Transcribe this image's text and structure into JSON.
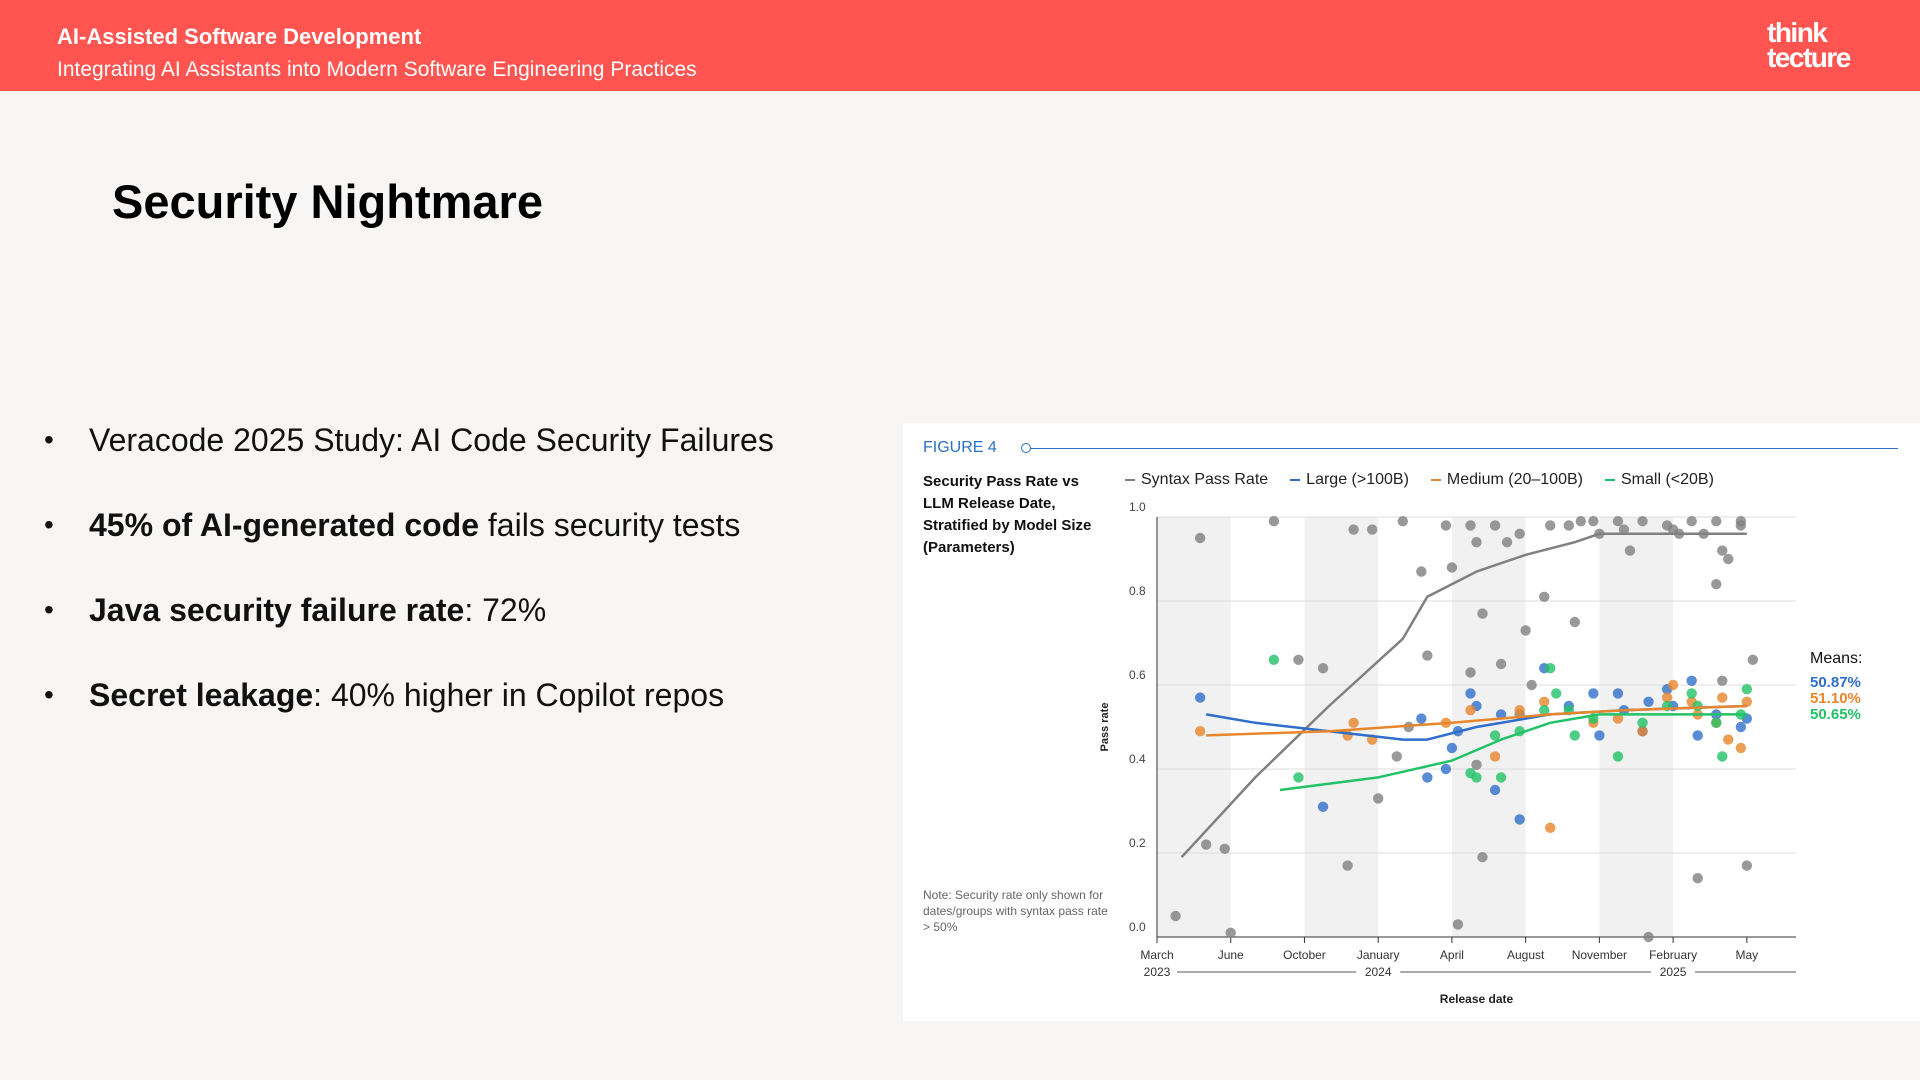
{
  "header": {
    "title": "AI-Assisted Software Development",
    "subtitle": "Integrating AI Assistants into Modern Software Engineering Practices",
    "logo_line1": "think",
    "logo_line2": "tecture"
  },
  "slide": {
    "title": "Security Nightmare",
    "bullets": [
      {
        "bold": "",
        "text": "Veracode 2025 Study: AI Code Security Failures"
      },
      {
        "bold": "45% of AI-generated code",
        "text": " fails security tests"
      },
      {
        "bold": "Java security failure rate",
        "text": ": 72%"
      },
      {
        "bold": "Secret leakage",
        "text": ": 40% higher in Copilot repos"
      }
    ]
  },
  "colors": {
    "header": "#ff544f",
    "syntax": "#808080",
    "large": "#2f6fcb",
    "medium": "#e8862c",
    "small": "#22c266"
  },
  "figure": {
    "label": "FIGURE 4",
    "title": "Security Pass Rate vs LLM Release Date, Stratified by Model Size (Parameters)",
    "note": "Note: Security rate only shown for dates/groups with syntax pass rate > 50%",
    "means_label": "Means:"
  },
  "chart_data": {
    "type": "scatter",
    "title": "Security Pass Rate vs LLM Release Date, Stratified by Model Size (Parameters)",
    "xlabel": "Release date",
    "ylabel": "Pass rate",
    "ylim": [
      0,
      1
    ],
    "xlim": [
      "2023-03",
      "2025-05"
    ],
    "x_ticks": [
      {
        "value": "2023-03",
        "label": "March",
        "year": "2023"
      },
      {
        "value": "2023-06",
        "label": "June"
      },
      {
        "value": "2023-09",
        "label": "October"
      },
      {
        "value": "2023-12",
        "label": "January",
        "year": "2024"
      },
      {
        "value": "2024-03",
        "label": "April"
      },
      {
        "value": "2024-06",
        "label": "August"
      },
      {
        "value": "2024-09",
        "label": "November"
      },
      {
        "value": "2024-12",
        "label": "February",
        "year": "2025"
      },
      {
        "value": "2025-03",
        "label": "May"
      }
    ],
    "y_ticks": [
      0.0,
      0.2,
      0.4,
      0.6,
      0.8,
      1.0
    ],
    "grid": true,
    "legend_position": "top",
    "series": [
      {
        "name": "Syntax Pass Rate",
        "color": "#808080",
        "points": [
          [
            "2023-04",
            0.05
          ],
          [
            "2023-05",
            0.95
          ],
          [
            "2023-05",
            0.22
          ],
          [
            "2023-06",
            0.21
          ],
          [
            "2023-06",
            0.01
          ],
          [
            "2023-08",
            0.99
          ],
          [
            "2023-09",
            0.66
          ],
          [
            "2023-10",
            0.64
          ],
          [
            "2023-11",
            0.17
          ],
          [
            "2023-11",
            0.97
          ],
          [
            "2023-12",
            0.97
          ],
          [
            "2023-12",
            0.33
          ],
          [
            "2024-01",
            0.43
          ],
          [
            "2024-01",
            0.99
          ],
          [
            "2024-01",
            0.5
          ],
          [
            "2024-02",
            0.87
          ],
          [
            "2024-02",
            0.67
          ],
          [
            "2024-03",
            0.98
          ],
          [
            "2024-03",
            0.88
          ],
          [
            "2024-03",
            0.03
          ],
          [
            "2024-04",
            0.98
          ],
          [
            "2024-04",
            0.94
          ],
          [
            "2024-04",
            0.77
          ],
          [
            "2024-04",
            0.63
          ],
          [
            "2024-04",
            0.41
          ],
          [
            "2024-04",
            0.19
          ],
          [
            "2024-05",
            0.98
          ],
          [
            "2024-05",
            0.65
          ],
          [
            "2024-05",
            0.94
          ],
          [
            "2024-06",
            0.96
          ],
          [
            "2024-06",
            0.73
          ],
          [
            "2024-06",
            0.6
          ],
          [
            "2024-06",
            0.53
          ],
          [
            "2024-07",
            0.81
          ],
          [
            "2024-07",
            0.98
          ],
          [
            "2024-08",
            0.98
          ],
          [
            "2024-08",
            0.75
          ],
          [
            "2024-08",
            0.99
          ],
          [
            "2024-09",
            0.99
          ],
          [
            "2024-09",
            0.96
          ],
          [
            "2024-10",
            0.99
          ],
          [
            "2024-10",
            0.97
          ],
          [
            "2024-10",
            0.92
          ],
          [
            "2024-11",
            0.99
          ],
          [
            "2024-11",
            0.0
          ],
          [
            "2024-12",
            0.98
          ],
          [
            "2024-12",
            0.97
          ],
          [
            "2024-12",
            0.96
          ],
          [
            "2025-01",
            0.99
          ],
          [
            "2025-01",
            0.14
          ],
          [
            "2025-01",
            0.96
          ],
          [
            "2025-02",
            0.99
          ],
          [
            "2025-02",
            0.92
          ],
          [
            "2025-02",
            0.9
          ],
          [
            "2025-02",
            0.84
          ],
          [
            "2025-02",
            0.61
          ],
          [
            "2025-03",
            0.99
          ],
          [
            "2025-03",
            0.17
          ],
          [
            "2025-03",
            0.66
          ],
          [
            "2025-03",
            0.98
          ]
        ],
        "trend": [
          [
            "2023-04",
            0.19
          ],
          [
            "2023-07",
            0.38
          ],
          [
            "2023-10",
            0.55
          ],
          [
            "2024-01",
            0.71
          ],
          [
            "2024-02",
            0.81
          ],
          [
            "2024-04",
            0.87
          ],
          [
            "2024-06",
            0.91
          ],
          [
            "2024-08",
            0.94
          ],
          [
            "2024-09",
            0.96
          ],
          [
            "2024-12",
            0.96
          ],
          [
            "2025-03",
            0.96
          ]
        ]
      },
      {
        "name": "Large (>100B)",
        "color": "#2f6fcb",
        "mean": "50.87%",
        "points": [
          [
            "2023-05",
            0.57
          ],
          [
            "2023-10",
            0.31
          ],
          [
            "2024-02",
            0.52
          ],
          [
            "2024-02",
            0.38
          ],
          [
            "2024-03",
            0.4
          ],
          [
            "2024-03",
            0.45
          ],
          [
            "2024-03",
            0.49
          ],
          [
            "2024-04",
            0.58
          ],
          [
            "2024-04",
            0.55
          ],
          [
            "2024-05",
            0.35
          ],
          [
            "2024-05",
            0.53
          ],
          [
            "2024-06",
            0.28
          ],
          [
            "2024-07",
            0.64
          ],
          [
            "2024-08",
            0.55
          ],
          [
            "2024-09",
            0.58
          ],
          [
            "2024-09",
            0.48
          ],
          [
            "2024-10",
            0.58
          ],
          [
            "2024-10",
            0.54
          ],
          [
            "2024-11",
            0.49
          ],
          [
            "2024-11",
            0.56
          ],
          [
            "2024-12",
            0.59
          ],
          [
            "2024-12",
            0.55
          ],
          [
            "2025-01",
            0.61
          ],
          [
            "2025-01",
            0.48
          ],
          [
            "2025-02",
            0.53
          ],
          [
            "2025-03",
            0.5
          ],
          [
            "2025-03",
            0.52
          ]
        ],
        "trend": [
          [
            "2023-05",
            0.53
          ],
          [
            "2023-07",
            0.51
          ],
          [
            "2023-10",
            0.49
          ],
          [
            "2024-01",
            0.47
          ],
          [
            "2024-02",
            0.47
          ],
          [
            "2024-04",
            0.5
          ],
          [
            "2024-07",
            0.53
          ],
          [
            "2024-10",
            0.54
          ],
          [
            "2025-03",
            0.55
          ]
        ]
      },
      {
        "name": "Medium (20–100B)",
        "color": "#e8862c",
        "mean": "51.10%",
        "points": [
          [
            "2023-05",
            0.49
          ],
          [
            "2023-11",
            0.48
          ],
          [
            "2023-11",
            0.51
          ],
          [
            "2023-12",
            0.47
          ],
          [
            "2024-03",
            0.51
          ],
          [
            "2024-04",
            0.54
          ],
          [
            "2024-05",
            0.43
          ],
          [
            "2024-06",
            0.54
          ],
          [
            "2024-07",
            0.56
          ],
          [
            "2024-07",
            0.26
          ],
          [
            "2024-09",
            0.51
          ],
          [
            "2024-10",
            0.52
          ],
          [
            "2024-11",
            0.49
          ],
          [
            "2024-12",
            0.57
          ],
          [
            "2024-12",
            0.6
          ],
          [
            "2025-01",
            0.56
          ],
          [
            "2025-01",
            0.53
          ],
          [
            "2025-02",
            0.51
          ],
          [
            "2025-02",
            0.57
          ],
          [
            "2025-02",
            0.47
          ],
          [
            "2025-03",
            0.45
          ],
          [
            "2025-03",
            0.56
          ]
        ],
        "trend": [
          [
            "2023-05",
            0.48
          ],
          [
            "2023-10",
            0.49
          ],
          [
            "2024-03",
            0.51
          ],
          [
            "2024-07",
            0.53
          ],
          [
            "2024-10",
            0.54
          ],
          [
            "2025-03",
            0.55
          ]
        ]
      },
      {
        "name": "Small (<20B)",
        "color": "#22c266",
        "mean": "50.65%",
        "points": [
          [
            "2023-08",
            0.66
          ],
          [
            "2023-09",
            0.38
          ],
          [
            "2024-04",
            0.39
          ],
          [
            "2024-04",
            0.38
          ],
          [
            "2024-05",
            0.48
          ],
          [
            "2024-05",
            0.38
          ],
          [
            "2024-06",
            0.49
          ],
          [
            "2024-07",
            0.54
          ],
          [
            "2024-07",
            0.64
          ],
          [
            "2024-07",
            0.58
          ],
          [
            "2024-08",
            0.54
          ],
          [
            "2024-08",
            0.48
          ],
          [
            "2024-09",
            0.52
          ],
          [
            "2024-10",
            0.43
          ],
          [
            "2024-11",
            0.51
          ],
          [
            "2024-12",
            0.55
          ],
          [
            "2025-01",
            0.58
          ],
          [
            "2025-01",
            0.55
          ],
          [
            "2025-02",
            0.51
          ],
          [
            "2025-02",
            0.43
          ],
          [
            "2025-03",
            0.53
          ],
          [
            "2025-03",
            0.59
          ]
        ],
        "trend": [
          [
            "2023-08",
            0.35
          ],
          [
            "2023-12",
            0.38
          ],
          [
            "2024-03",
            0.42
          ],
          [
            "2024-05",
            0.47
          ],
          [
            "2024-07",
            0.51
          ],
          [
            "2024-09",
            0.53
          ],
          [
            "2025-03",
            0.53
          ]
        ]
      }
    ]
  }
}
